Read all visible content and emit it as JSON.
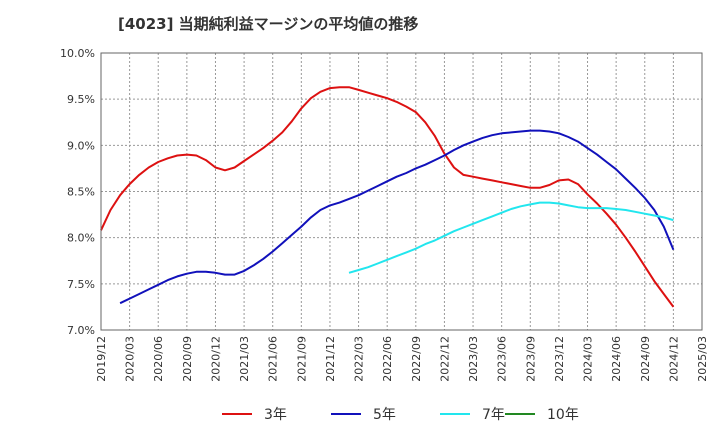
{
  "chart_data": {
    "type": "line",
    "title": "[4023]  当期純利益マージンの平均値の推移",
    "xlabel": "",
    "ylabel": "",
    "ylim": [
      7.0,
      10.0
    ],
    "y_ticks": [
      "7.0%",
      "7.5%",
      "8.0%",
      "8.5%",
      "9.0%",
      "9.5%",
      "10.0%"
    ],
    "y_tick_values": [
      7.0,
      7.5,
      8.0,
      8.5,
      9.0,
      9.5,
      10.0
    ],
    "x_ticks": [
      "2019/12",
      "2020/03",
      "2020/06",
      "2020/09",
      "2020/12",
      "2021/03",
      "2021/06",
      "2021/09",
      "2021/12",
      "2022/03",
      "2022/06",
      "2022/09",
      "2022/12",
      "2023/03",
      "2023/06",
      "2023/09",
      "2023/12",
      "2024/03",
      "2024/06",
      "2024/09",
      "2024/12",
      "2025/03"
    ],
    "grid": true,
    "legend_position": "bottom",
    "series": [
      {
        "name": "3年",
        "color": "#dd1111",
        "x": [
          "2019/12",
          "2020/01",
          "2020/02",
          "2020/03",
          "2020/04",
          "2020/05",
          "2020/06",
          "2020/07",
          "2020/08",
          "2020/09",
          "2020/10",
          "2020/11",
          "2020/12",
          "2021/01",
          "2021/02",
          "2021/03",
          "2021/04",
          "2021/05",
          "2021/06",
          "2021/07",
          "2021/08",
          "2021/09",
          "2021/10",
          "2021/11",
          "2021/12",
          "2022/01",
          "2022/02",
          "2022/03",
          "2022/04",
          "2022/05",
          "2022/06",
          "2022/07",
          "2022/08",
          "2022/09",
          "2022/10",
          "2022/11",
          "2022/12",
          "2023/01",
          "2023/02",
          "2023/03",
          "2023/04",
          "2023/05",
          "2023/06",
          "2023/07",
          "2023/08",
          "2023/09",
          "2023/10",
          "2023/11",
          "2023/12",
          "2024/01",
          "2024/02",
          "2024/03",
          "2024/04",
          "2024/05",
          "2024/06",
          "2024/07",
          "2024/08",
          "2024/09",
          "2024/10",
          "2024/11",
          "2024/12"
        ],
        "values": [
          8.08,
          8.3,
          8.46,
          8.58,
          8.68,
          8.76,
          8.82,
          8.86,
          8.89,
          8.9,
          8.89,
          8.84,
          8.76,
          8.73,
          8.76,
          8.83,
          8.9,
          8.97,
          9.05,
          9.14,
          9.26,
          9.4,
          9.51,
          9.58,
          9.62,
          9.63,
          9.63,
          9.6,
          9.57,
          9.54,
          9.51,
          9.47,
          9.42,
          9.36,
          9.25,
          9.1,
          8.91,
          8.76,
          8.68,
          8.66,
          8.64,
          8.62,
          8.6,
          8.58,
          8.56,
          8.54,
          8.54,
          8.57,
          8.62,
          8.63,
          8.58,
          8.47,
          8.37,
          8.26,
          8.14,
          8.0,
          7.85,
          7.69,
          7.53,
          7.39,
          7.25
        ]
      },
      {
        "name": "5年",
        "color": "#1111bb",
        "x": [
          "2020/02",
          "2020/03",
          "2020/04",
          "2020/05",
          "2020/06",
          "2020/07",
          "2020/08",
          "2020/09",
          "2020/10",
          "2020/11",
          "2020/12",
          "2021/01",
          "2021/02",
          "2021/03",
          "2021/04",
          "2021/05",
          "2021/06",
          "2021/07",
          "2021/08",
          "2021/09",
          "2021/10",
          "2021/11",
          "2021/12",
          "2022/01",
          "2022/02",
          "2022/03",
          "2022/04",
          "2022/05",
          "2022/06",
          "2022/07",
          "2022/08",
          "2022/09",
          "2022/10",
          "2022/11",
          "2022/12",
          "2023/01",
          "2023/02",
          "2023/03",
          "2023/04",
          "2023/05",
          "2023/06",
          "2023/07",
          "2023/08",
          "2023/09",
          "2023/10",
          "2023/11",
          "2023/12",
          "2024/01",
          "2024/02",
          "2024/03",
          "2024/04",
          "2024/05",
          "2024/06",
          "2024/07",
          "2024/08",
          "2024/09",
          "2024/10",
          "2024/11",
          "2024/12"
        ],
        "values": [
          7.29,
          7.34,
          7.39,
          7.44,
          7.49,
          7.54,
          7.58,
          7.61,
          7.63,
          7.63,
          7.62,
          7.6,
          7.6,
          7.64,
          7.7,
          7.77,
          7.85,
          7.94,
          8.03,
          8.12,
          8.22,
          8.3,
          8.35,
          8.38,
          8.42,
          8.46,
          8.51,
          8.56,
          8.61,
          8.66,
          8.7,
          8.75,
          8.79,
          8.84,
          8.89,
          8.95,
          9.0,
          9.04,
          9.08,
          9.11,
          9.13,
          9.14,
          9.15,
          9.16,
          9.16,
          9.15,
          9.13,
          9.09,
          9.04,
          8.97,
          8.9,
          8.82,
          8.74,
          8.64,
          8.54,
          8.43,
          8.3,
          8.12,
          7.87
        ]
      },
      {
        "name": "7年",
        "color": "#22e6ee",
        "x": [
          "2022/02",
          "2022/03",
          "2022/04",
          "2022/05",
          "2022/06",
          "2022/07",
          "2022/08",
          "2022/09",
          "2022/10",
          "2022/11",
          "2022/12",
          "2023/01",
          "2023/02",
          "2023/03",
          "2023/04",
          "2023/05",
          "2023/06",
          "2023/07",
          "2023/08",
          "2023/09",
          "2023/10",
          "2023/11",
          "2023/12",
          "2024/01",
          "2024/02",
          "2024/03",
          "2024/04",
          "2024/05",
          "2024/06",
          "2024/07",
          "2024/08",
          "2024/09",
          "2024/10",
          "2024/11",
          "2024/12"
        ],
        "values": [
          7.62,
          7.65,
          7.68,
          7.72,
          7.76,
          7.8,
          7.84,
          7.88,
          7.93,
          7.97,
          8.02,
          8.07,
          8.11,
          8.15,
          8.19,
          8.23,
          8.27,
          8.31,
          8.34,
          8.36,
          8.38,
          8.38,
          8.37,
          8.35,
          8.33,
          8.32,
          8.32,
          8.32,
          8.31,
          8.3,
          8.28,
          8.26,
          8.24,
          8.22,
          8.19
        ]
      },
      {
        "name": "10年",
        "color": "#228822",
        "x": [],
        "values": []
      }
    ]
  }
}
